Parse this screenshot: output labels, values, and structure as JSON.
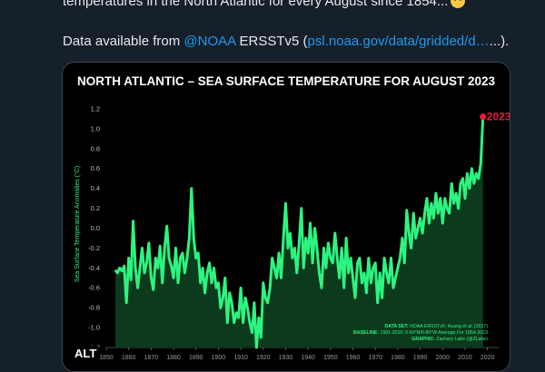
{
  "tweet": {
    "line1_text": "temperatures in the North Atlantic for every August since 1854...",
    "line2_prefix": "Data available from ",
    "mention": "@NOAA",
    "line2_middle": " ERSSTv5 (",
    "link_text": "psl.noaa.gov/data/gridded/d…",
    "line2_suffix": "...).",
    "emoji_icon": "concerned-face-emoji"
  },
  "media": {
    "alt_label": "ALT"
  },
  "chart_data": {
    "type": "area",
    "title": "NORTH ATLANTIC – SEA SURFACE TEMPERATURE FOR AUGUST 2023",
    "ylabel": "Sea Surface Temperature Anomalies (°C)",
    "xlabel": "",
    "xlim": [
      1850,
      2025
    ],
    "ylim": [
      -1.2,
      1.3
    ],
    "x_ticks": [
      "1850",
      "1860",
      "1870",
      "1880",
      "1890",
      "1900",
      "1910",
      "1920",
      "1930",
      "1940",
      "1950",
      "1960",
      "1970",
      "1980",
      "1990",
      "2000",
      "2010",
      "2020"
    ],
    "y_ticks": [
      "1.2",
      "1.0",
      "0.8",
      "0.6",
      "0.4",
      "0.2",
      "0.0",
      "-0.2",
      "-0.4",
      "-0.6",
      "-0.8",
      "-1.0",
      "-1.2"
    ],
    "line_color": "#2cf47f",
    "fill_color": "#0c3a1c",
    "highlight_color": "#e8193d",
    "highlight_label": "2023",
    "grid": false,
    "credits": {
      "dataset_label": "DATA SET:",
      "dataset_text": " NOAA ERSSTv5; Huang et al. (2017)",
      "baseline_label": "BASELINE:",
      "baseline_text": " 1981-2010; 0-60°N/0-80°W Average For 1854-2023",
      "graphic_label": "GRAPHIC:",
      "graphic_text": " Zachary Labe (@ZLabe)"
    },
    "series": [
      {
        "x_start": 1854,
        "x_step": 1,
        "values": [
          -0.42,
          -0.45,
          -0.4,
          -0.43,
          -0.38,
          -0.75,
          -0.3,
          -0.52,
          0.07,
          -0.4,
          -0.6,
          -0.4,
          -0.2,
          -0.45,
          -0.35,
          -0.15,
          -0.5,
          -0.62,
          -0.3,
          -0.4,
          -0.18,
          -0.55,
          -0.2,
          0.02,
          -0.3,
          -0.38,
          -0.5,
          -0.2,
          -0.55,
          -0.3,
          -0.25,
          -0.45,
          -0.3,
          -0.1,
          0.4,
          -0.1,
          -0.3,
          -0.25,
          -0.55,
          -0.4,
          -0.65,
          -0.45,
          -0.35,
          -0.55,
          -0.4,
          -0.6,
          -0.55,
          -0.8,
          -0.7,
          -0.5,
          -0.95,
          -0.65,
          -0.75,
          -0.95,
          -0.85,
          -0.9,
          -0.6,
          -0.95,
          -0.7,
          -0.8,
          -0.95,
          -1.05,
          -0.75,
          -1.2,
          -0.9,
          -1.1,
          -0.55,
          -0.7,
          -0.75,
          -0.6,
          -0.3,
          -0.4,
          -0.5,
          -0.25,
          -0.5,
          -0.1,
          0.25,
          -0.2,
          -0.05,
          -0.3,
          -0.2,
          -0.45,
          -0.15,
          0.2,
          -0.4,
          -0.1,
          -0.25,
          0.05,
          -0.35,
          0.0,
          -0.2,
          -0.45,
          -0.6,
          -0.2,
          -0.4,
          -0.15,
          -0.3,
          -0.35,
          -0.05,
          -0.3,
          -0.5,
          -0.2,
          -0.6,
          -0.1,
          -0.45,
          -0.3,
          -0.5,
          -0.7,
          -0.35,
          -0.3,
          -0.55,
          -0.45,
          -0.65,
          -0.3,
          -0.55,
          -0.4,
          -0.35,
          -0.75,
          -0.45,
          -0.7,
          -0.3,
          -0.45,
          -0.55,
          -0.3,
          -0.6,
          -0.5,
          -0.4,
          -0.3,
          -0.1,
          -0.35,
          0.18,
          -0.05,
          -0.2,
          0.15,
          -0.1,
          0.0,
          0.1,
          -0.05,
          0.15,
          0.3,
          0.05,
          0.25,
          0.1,
          0.35,
          0.15,
          0.3,
          0.05,
          0.3,
          0.2,
          0.15,
          0.45,
          0.25,
          0.35,
          0.2,
          0.45,
          0.5,
          0.3,
          0.55,
          0.4,
          0.6,
          0.45,
          0.55,
          0.5,
          0.65,
          1.12
        ]
      }
    ]
  }
}
